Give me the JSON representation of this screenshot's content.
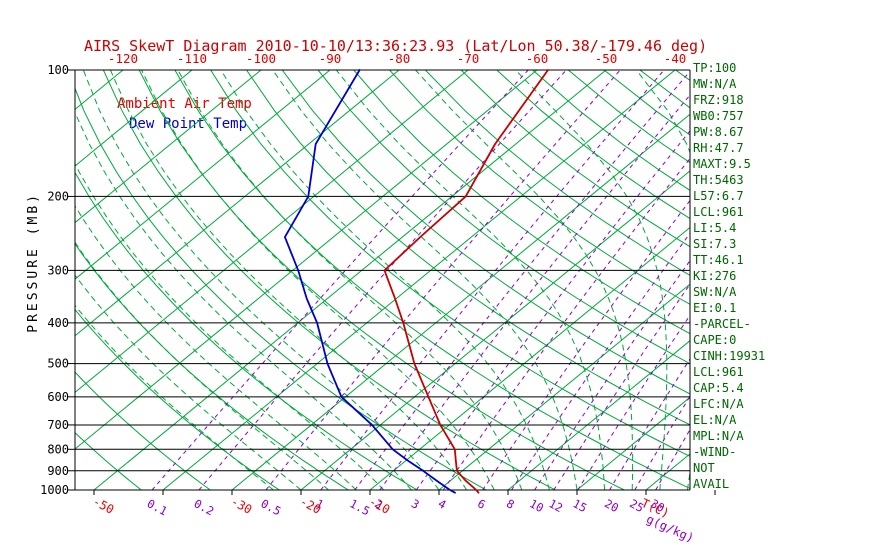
{
  "title": "AIRS SkewT Diagram 2010-10-10/13:36:23.93 (Lat/Lon 50.38/-179.46 deg)",
  "legend": {
    "temp": "Ambient Air Temp",
    "dew": "Dew Point Temp"
  },
  "axes": {
    "pressure_label": "PRESSURE (MB)",
    "pressure_ticks": [
      100,
      200,
      300,
      400,
      500,
      600,
      700,
      800,
      900,
      1000
    ],
    "top_temp_ticks": [
      -120,
      -110,
      -100,
      -90,
      -80,
      -70,
      -60,
      -50,
      -40
    ],
    "bottom_temp_ticks": [
      -50,
      -30,
      -20,
      -10
    ],
    "temp_unit_label": "T(C)",
    "mixing_unit_label": "g(g/kg)"
  },
  "stats": [
    "TP:100",
    "MW:N/A",
    "FRZ:918",
    "WB0:757",
    "PW:8.67",
    "RH:47.7",
    "MAXT:9.5",
    "TH:5463",
    "L57:6.7",
    "LCL:961",
    "LI:5.4",
    "SI:7.3",
    "TT:46.1",
    "KI:276",
    "SW:N/A",
    "EI:0.1",
    "-PARCEL-",
    "CAPE:0",
    "CINH:19931",
    "LCL:961",
    "CAP:5.4",
    "LFC:N/A",
    "EL:N/A",
    "MPL:N/A",
    "-WIND-",
    "NOT",
    "AVAIL"
  ],
  "colors": {
    "title_red": "#cc0000",
    "axis_red": "#e60000",
    "temp_curve": "#c80000",
    "dew_curve": "#0000c8",
    "legend_temp": "#e60000",
    "legend_dew": "#0000cc",
    "grid_green": "#00a83c",
    "mixing_purple": "#8a00cc",
    "stats_green": "#006600",
    "axis_black": "#000000"
  },
  "chart_data": {
    "type": "line",
    "title": "AIRS SkewT Diagram 2010-10-10/13:36:23.93 (Lat/Lon 50.38/-179.46 deg)",
    "x_axis": {
      "label": "T(C)",
      "skewed": true,
      "top_ticks_c": [
        -120,
        -110,
        -100,
        -90,
        -80,
        -70,
        -60,
        -50,
        -40
      ],
      "bottom_ticks_c": [
        -50,
        -30,
        -20,
        -10
      ]
    },
    "y_axis": {
      "label": "PRESSURE (MB)",
      "scale": "log",
      "range": [
        100,
        1000
      ],
      "ticks": [
        100,
        200,
        300,
        400,
        500,
        600,
        700,
        800,
        900,
        1000
      ]
    },
    "isotherms_c": {
      "min": -120,
      "max": 40,
      "step": 10
    },
    "dry_adiabats_theta_k": {
      "min": 220,
      "max": 460,
      "step": 10
    },
    "moist_adiabats_start_c": {
      "min": -24,
      "max": 40,
      "step": 4
    },
    "mixing_ratio_lines_g_per_kg": [
      0.1,
      0.2,
      0.5,
      1,
      1.5,
      2,
      3,
      4,
      6,
      8,
      10,
      12,
      15,
      20,
      25,
      30
    ],
    "series": [
      {
        "name": "Ambient Air Temp",
        "color": "#c80000",
        "points_p_t": [
          [
            1015,
            6.2
          ],
          [
            1000,
            5.4
          ],
          [
            950,
            2.2
          ],
          [
            900,
            -0.8
          ],
          [
            850,
            -2.8
          ],
          [
            800,
            -4.9
          ],
          [
            700,
            -11.3
          ],
          [
            600,
            -18.0
          ],
          [
            500,
            -25.9
          ],
          [
            400,
            -34.7
          ],
          [
            350,
            -40.2
          ],
          [
            300,
            -46.7
          ],
          [
            250,
            -47.4
          ],
          [
            200,
            -48.0
          ],
          [
            150,
            -53.0
          ],
          [
            100,
            -58.4
          ]
        ]
      },
      {
        "name": "Dew Point Temp",
        "color": "#0000c8",
        "points_p_t": [
          [
            1015,
            2.8
          ],
          [
            1000,
            1.6
          ],
          [
            950,
            -2.0
          ],
          [
            900,
            -5.7
          ],
          [
            850,
            -9.8
          ],
          [
            800,
            -13.9
          ],
          [
            700,
            -21.2
          ],
          [
            600,
            -30.6
          ],
          [
            500,
            -38.5
          ],
          [
            400,
            -47.2
          ],
          [
            350,
            -53.0
          ],
          [
            300,
            -59.2
          ],
          [
            250,
            -67.0
          ],
          [
            200,
            -70.8
          ],
          [
            150,
            -79.0
          ],
          [
            100,
            -85.7
          ]
        ]
      }
    ]
  }
}
